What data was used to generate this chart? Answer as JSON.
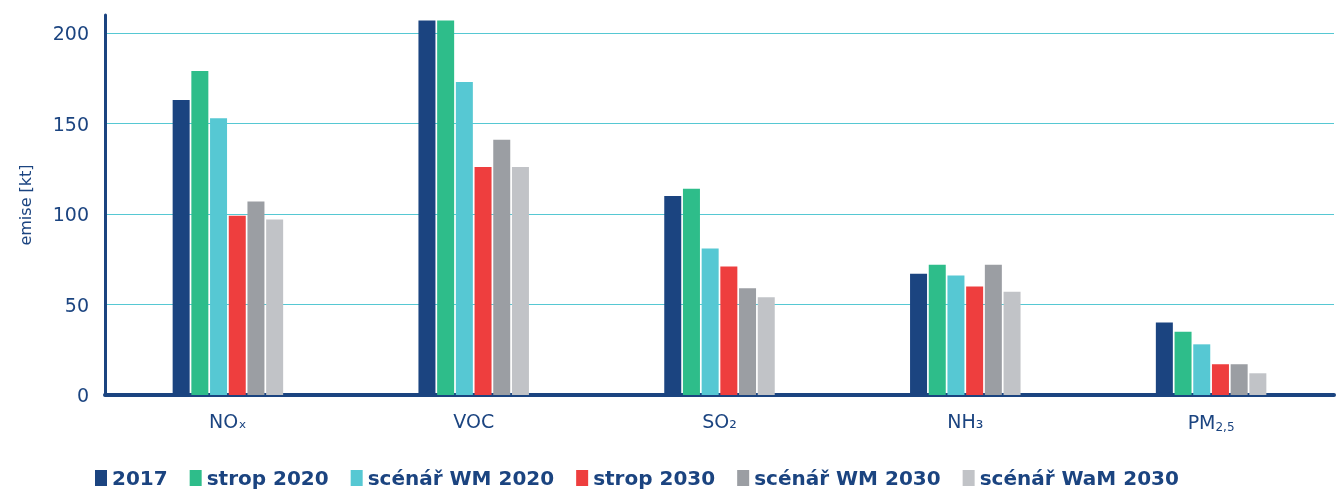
{
  "chart_data": {
    "type": "bar",
    "ylabel": "emise [kt]",
    "categories": [
      "NOₓ",
      "VOC",
      "SO₂",
      "NH₃",
      "PM$_{2,5}$"
    ],
    "series": [
      {
        "name": "2017",
        "color": "#1b4480",
        "values": [
          163,
          207,
          110,
          67,
          40
        ]
      },
      {
        "name": "strop 2020",
        "color": "#2ebd8a",
        "values": [
          179,
          207,
          114,
          72,
          35
        ]
      },
      {
        "name": "scénář WM 2020",
        "color": "#56c8d3",
        "values": [
          153,
          173,
          81,
          66,
          28
        ]
      },
      {
        "name": "strop 2030",
        "color": "#ee3e3e",
        "values": [
          99,
          126,
          71,
          60,
          17
        ]
      },
      {
        "name": "scénář WM 2030",
        "color": "#9b9ea3",
        "values": [
          107,
          141,
          59,
          72,
          17
        ]
      },
      {
        "name": "scénář WaM 2030",
        "color": "#c1c3c7",
        "values": [
          97,
          126,
          54,
          57,
          12
        ]
      }
    ],
    "ylim": [
      0,
      210
    ],
    "yticks": [
      0,
      50,
      100,
      150,
      200
    ],
    "grid": "y",
    "legend": "bottom"
  }
}
